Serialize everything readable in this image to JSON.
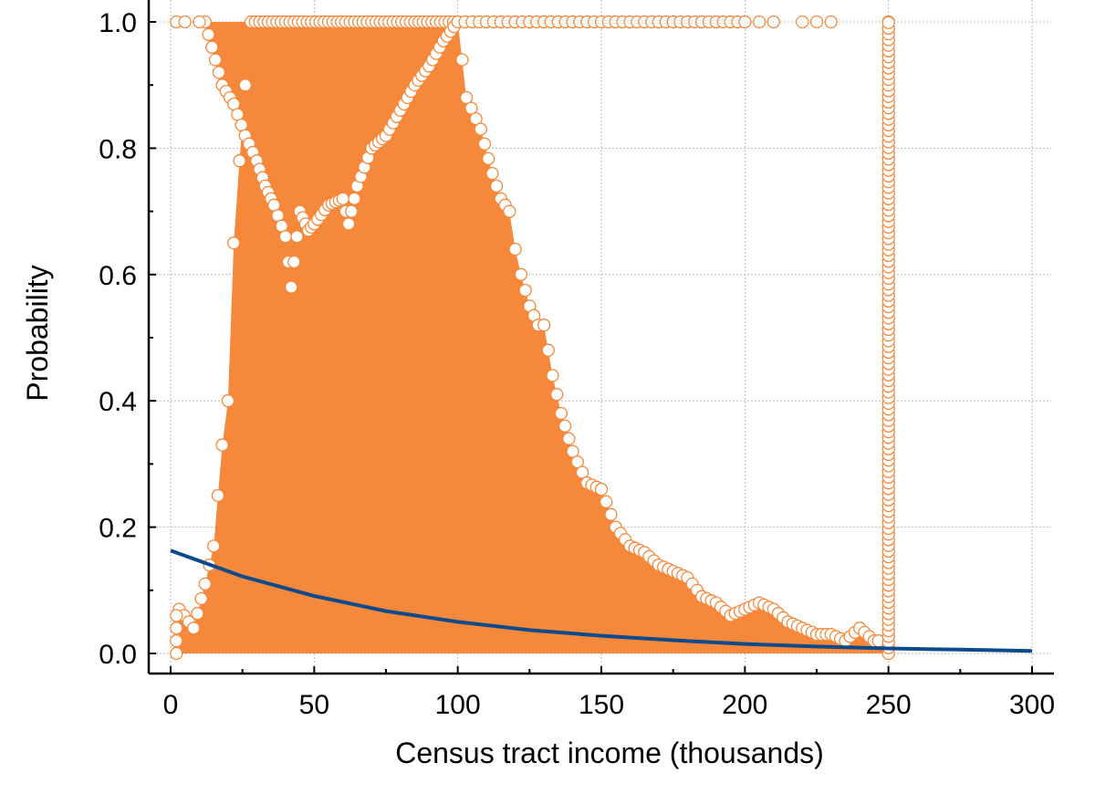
{
  "chart_data": {
    "type": "scatter",
    "xlabel": "Census tract income (thousands)",
    "ylabel": "Probability",
    "xlim": [
      0,
      300
    ],
    "ylim": [
      0,
      1
    ],
    "xticks": [
      "0",
      "50",
      "100",
      "150",
      "200",
      "250",
      "300"
    ],
    "yticks": [
      "0.0",
      "0.2",
      "0.4",
      "0.6",
      "0.8",
      "1.0"
    ],
    "grid": true,
    "colors": {
      "scatter": "#f5883a",
      "line": "#0b4a8c"
    },
    "scatter_upper_envelope": [
      {
        "x": 3,
        "y": 0.07
      },
      {
        "x": 8,
        "y": 0.04
      },
      {
        "x": 12,
        "y": 0.11
      },
      {
        "x": 15,
        "y": 0.17
      },
      {
        "x": 18,
        "y": 0.33
      },
      {
        "x": 20,
        "y": 0.4
      },
      {
        "x": 22,
        "y": 0.65
      },
      {
        "x": 24,
        "y": 0.78
      },
      {
        "x": 26,
        "y": 0.9
      },
      {
        "x": 28,
        "y": 1.0
      },
      {
        "x": 100,
        "y": 1.0
      },
      {
        "x": 103,
        "y": 0.88
      },
      {
        "x": 108,
        "y": 0.83
      },
      {
        "x": 112,
        "y": 0.76
      },
      {
        "x": 115,
        "y": 0.72
      },
      {
        "x": 118,
        "y": 0.7
      },
      {
        "x": 120,
        "y": 0.64
      },
      {
        "x": 122,
        "y": 0.6
      },
      {
        "x": 125,
        "y": 0.55
      },
      {
        "x": 128,
        "y": 0.52
      },
      {
        "x": 130,
        "y": 0.52
      },
      {
        "x": 133,
        "y": 0.44
      },
      {
        "x": 136,
        "y": 0.38
      },
      {
        "x": 140,
        "y": 0.32
      },
      {
        "x": 145,
        "y": 0.27
      },
      {
        "x": 150,
        "y": 0.26
      },
      {
        "x": 155,
        "y": 0.2
      },
      {
        "x": 160,
        "y": 0.17
      },
      {
        "x": 165,
        "y": 0.16
      },
      {
        "x": 170,
        "y": 0.14
      },
      {
        "x": 175,
        "y": 0.13
      },
      {
        "x": 180,
        "y": 0.12
      },
      {
        "x": 185,
        "y": 0.09
      },
      {
        "x": 190,
        "y": 0.08
      },
      {
        "x": 195,
        "y": 0.06
      },
      {
        "x": 200,
        "y": 0.07
      },
      {
        "x": 205,
        "y": 0.08
      },
      {
        "x": 210,
        "y": 0.07
      },
      {
        "x": 215,
        "y": 0.05
      },
      {
        "x": 220,
        "y": 0.04
      },
      {
        "x": 225,
        "y": 0.03
      },
      {
        "x": 230,
        "y": 0.03
      },
      {
        "x": 235,
        "y": 0.02
      },
      {
        "x": 240,
        "y": 0.04
      },
      {
        "x": 245,
        "y": 0.02
      },
      {
        "x": 248,
        "y": 0.02
      }
    ],
    "scatter_lower_dip": [
      {
        "x": 12,
        "y": 1.0
      },
      {
        "x": 18,
        "y": 0.9
      },
      {
        "x": 22,
        "y": 0.87
      },
      {
        "x": 26,
        "y": 0.82
      },
      {
        "x": 30,
        "y": 0.78
      },
      {
        "x": 33,
        "y": 0.74
      },
      {
        "x": 36,
        "y": 0.71
      },
      {
        "x": 40,
        "y": 0.66
      },
      {
        "x": 42,
        "y": 0.58
      },
      {
        "x": 45,
        "y": 0.7
      },
      {
        "x": 48,
        "y": 0.67
      },
      {
        "x": 50,
        "y": 0.68
      },
      {
        "x": 55,
        "y": 0.71
      },
      {
        "x": 60,
        "y": 0.72
      },
      {
        "x": 62,
        "y": 0.68
      },
      {
        "x": 65,
        "y": 0.74
      },
      {
        "x": 70,
        "y": 0.8
      },
      {
        "x": 75,
        "y": 0.82
      },
      {
        "x": 80,
        "y": 0.86
      },
      {
        "x": 85,
        "y": 0.9
      },
      {
        "x": 90,
        "y": 0.93
      },
      {
        "x": 95,
        "y": 0.97
      },
      {
        "x": 100,
        "y": 1.0
      }
    ],
    "scatter_at_one": [
      {
        "x": 2,
        "y": 1.0
      },
      {
        "x": 5,
        "y": 1.0
      },
      {
        "x": 10,
        "y": 1.0
      },
      {
        "x": 105,
        "y": 1.0
      },
      {
        "x": 110,
        "y": 1.0
      },
      {
        "x": 115,
        "y": 1.0
      },
      {
        "x": 120,
        "y": 1.0
      },
      {
        "x": 125,
        "y": 1.0
      },
      {
        "x": 130,
        "y": 1.0
      },
      {
        "x": 135,
        "y": 1.0
      },
      {
        "x": 140,
        "y": 1.0
      },
      {
        "x": 145,
        "y": 1.0
      },
      {
        "x": 150,
        "y": 1.0
      },
      {
        "x": 155,
        "y": 1.0
      },
      {
        "x": 160,
        "y": 1.0
      },
      {
        "x": 165,
        "y": 1.0
      },
      {
        "x": 170,
        "y": 1.0
      },
      {
        "x": 175,
        "y": 1.0
      },
      {
        "x": 180,
        "y": 1.0
      },
      {
        "x": 185,
        "y": 1.0
      },
      {
        "x": 190,
        "y": 1.0
      },
      {
        "x": 195,
        "y": 1.0
      },
      {
        "x": 200,
        "y": 1.0
      },
      {
        "x": 205,
        "y": 1.0
      },
      {
        "x": 210,
        "y": 1.0
      },
      {
        "x": 220,
        "y": 1.0
      },
      {
        "x": 225,
        "y": 1.0
      },
      {
        "x": 230,
        "y": 1.0
      },
      {
        "x": 250,
        "y": 1.0
      }
    ],
    "scatter_vertical_column": {
      "x": 250,
      "y_min": 0.0,
      "y_max": 1.0
    },
    "fitted_curve": [
      {
        "x": 0,
        "y": 0.163
      },
      {
        "x": 25,
        "y": 0.122
      },
      {
        "x": 50,
        "y": 0.091
      },
      {
        "x": 75,
        "y": 0.067
      },
      {
        "x": 100,
        "y": 0.05
      },
      {
        "x": 125,
        "y": 0.037
      },
      {
        "x": 150,
        "y": 0.028
      },
      {
        "x": 175,
        "y": 0.021
      },
      {
        "x": 200,
        "y": 0.015
      },
      {
        "x": 225,
        "y": 0.011
      },
      {
        "x": 250,
        "y": 0.008
      },
      {
        "x": 275,
        "y": 0.006
      },
      {
        "x": 300,
        "y": 0.004
      }
    ]
  }
}
